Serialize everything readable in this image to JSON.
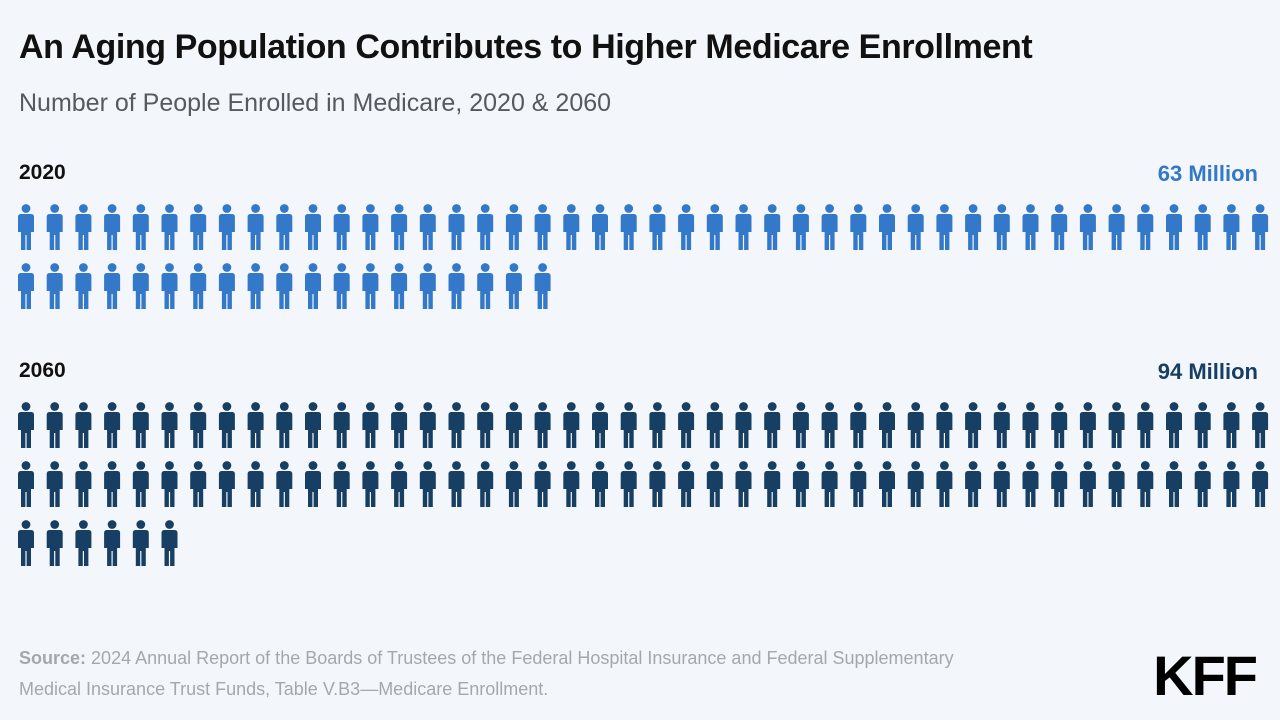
{
  "header": {
    "title": "An Aging Population Contributes to Higher Medicare Enrollment",
    "subtitle": "Number of People Enrolled in Medicare, 2020 & 2060"
  },
  "chart_data": {
    "type": "pictograph",
    "unit": "Million",
    "series": [
      {
        "year": "2020",
        "total_label": "63 Million",
        "value": 63,
        "color": "#3479c9"
      },
      {
        "year": "2060",
        "total_label": "94 Million",
        "value": 94,
        "color": "#173f63"
      }
    ]
  },
  "footer": {
    "source_label": "Source:",
    "source_text": "2024 Annual Report of the Boards of Trustees of the Federal Hospital Insurance and Federal Supplementary Medical Insurance Trust Funds, Table V.B3—Medicare Enrollment.",
    "logo": "KFF"
  }
}
